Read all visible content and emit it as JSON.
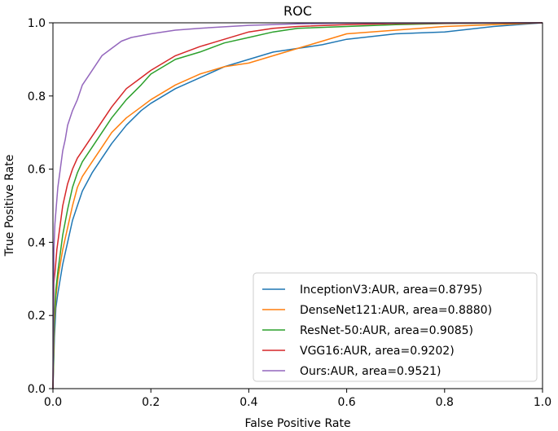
{
  "chart_data": {
    "type": "line",
    "title": "ROC",
    "xlabel": "False Positive Rate",
    "ylabel": "True Positive Rate",
    "xlim": [
      0.0,
      1.0
    ],
    "ylim": [
      0.0,
      1.0
    ],
    "xticks": [
      "0.0",
      "0.2",
      "0.4",
      "0.6",
      "0.8",
      "1.0"
    ],
    "yticks": [
      "0.0",
      "0.2",
      "0.4",
      "0.6",
      "0.8",
      "1.0"
    ],
    "grid": false,
    "legend_position": "lower-right",
    "series": [
      {
        "name": "InceptionV3:AUR, area=0.8795)",
        "color": "#1f77b4",
        "x": [
          0,
          0.003,
          0.006,
          0.01,
          0.015,
          0.02,
          0.03,
          0.04,
          0.05,
          0.06,
          0.08,
          0.1,
          0.12,
          0.15,
          0.18,
          0.2,
          0.25,
          0.3,
          0.35,
          0.4,
          0.45,
          0.5,
          0.55,
          0.6,
          0.7,
          0.8,
          0.9,
          1.0
        ],
        "y": [
          0,
          0.14,
          0.22,
          0.26,
          0.3,
          0.34,
          0.4,
          0.46,
          0.5,
          0.54,
          0.59,
          0.63,
          0.67,
          0.72,
          0.76,
          0.78,
          0.82,
          0.85,
          0.88,
          0.9,
          0.92,
          0.93,
          0.94,
          0.955,
          0.97,
          0.975,
          0.99,
          1.0
        ]
      },
      {
        "name": "DenseNet121:AUR, area=0.8880)",
        "color": "#ff7f0e",
        "x": [
          0,
          0.003,
          0.006,
          0.01,
          0.015,
          0.02,
          0.03,
          0.04,
          0.05,
          0.06,
          0.08,
          0.1,
          0.12,
          0.15,
          0.18,
          0.2,
          0.25,
          0.3,
          0.35,
          0.4,
          0.45,
          0.5,
          0.55,
          0.6,
          0.7,
          0.8,
          0.9,
          1.0
        ],
        "y": [
          0,
          0.18,
          0.25,
          0.3,
          0.34,
          0.38,
          0.44,
          0.5,
          0.55,
          0.58,
          0.62,
          0.66,
          0.7,
          0.74,
          0.77,
          0.79,
          0.83,
          0.86,
          0.88,
          0.89,
          0.91,
          0.93,
          0.95,
          0.97,
          0.98,
          0.99,
          0.995,
          1.0
        ]
      },
      {
        "name": "ResNet-50:AUR, area=0.9085)",
        "color": "#2ca02c",
        "x": [
          0,
          0.003,
          0.006,
          0.01,
          0.015,
          0.02,
          0.03,
          0.04,
          0.05,
          0.06,
          0.08,
          0.1,
          0.12,
          0.15,
          0.18,
          0.2,
          0.25,
          0.3,
          0.35,
          0.4,
          0.45,
          0.5,
          0.6,
          0.7,
          0.8,
          1.0
        ],
        "y": [
          0,
          0.2,
          0.27,
          0.32,
          0.37,
          0.42,
          0.49,
          0.55,
          0.59,
          0.62,
          0.66,
          0.7,
          0.74,
          0.79,
          0.83,
          0.86,
          0.9,
          0.92,
          0.945,
          0.96,
          0.975,
          0.985,
          0.99,
          0.995,
          0.998,
          1.0
        ]
      },
      {
        "name": "VGG16:AUR, area=0.9202)",
        "color": "#d62728",
        "x": [
          0,
          0.002,
          0.005,
          0.008,
          0.012,
          0.016,
          0.02,
          0.03,
          0.04,
          0.05,
          0.06,
          0.08,
          0.1,
          0.12,
          0.15,
          0.18,
          0.2,
          0.25,
          0.3,
          0.35,
          0.4,
          0.45,
          0.5,
          0.6,
          0.7,
          1.0
        ],
        "y": [
          0,
          0.29,
          0.33,
          0.38,
          0.42,
          0.46,
          0.5,
          0.56,
          0.6,
          0.63,
          0.65,
          0.69,
          0.73,
          0.77,
          0.82,
          0.85,
          0.87,
          0.91,
          0.935,
          0.955,
          0.975,
          0.985,
          0.99,
          0.995,
          0.998,
          1.0
        ]
      },
      {
        "name": "Ours:AUR, area=0.9521)",
        "color": "#9467bd",
        "x": [
          0,
          0.002,
          0.004,
          0.007,
          0.01,
          0.015,
          0.02,
          0.025,
          0.03,
          0.04,
          0.05,
          0.06,
          0.07,
          0.08,
          0.09,
          0.1,
          0.12,
          0.14,
          0.16,
          0.2,
          0.25,
          0.3,
          0.4,
          0.5,
          0.6,
          1.0
        ],
        "y": [
          0,
          0.38,
          0.45,
          0.5,
          0.55,
          0.6,
          0.65,
          0.68,
          0.72,
          0.76,
          0.79,
          0.83,
          0.85,
          0.87,
          0.89,
          0.91,
          0.93,
          0.95,
          0.96,
          0.97,
          0.98,
          0.985,
          0.993,
          0.997,
          0.999,
          1.0
        ]
      }
    ]
  }
}
